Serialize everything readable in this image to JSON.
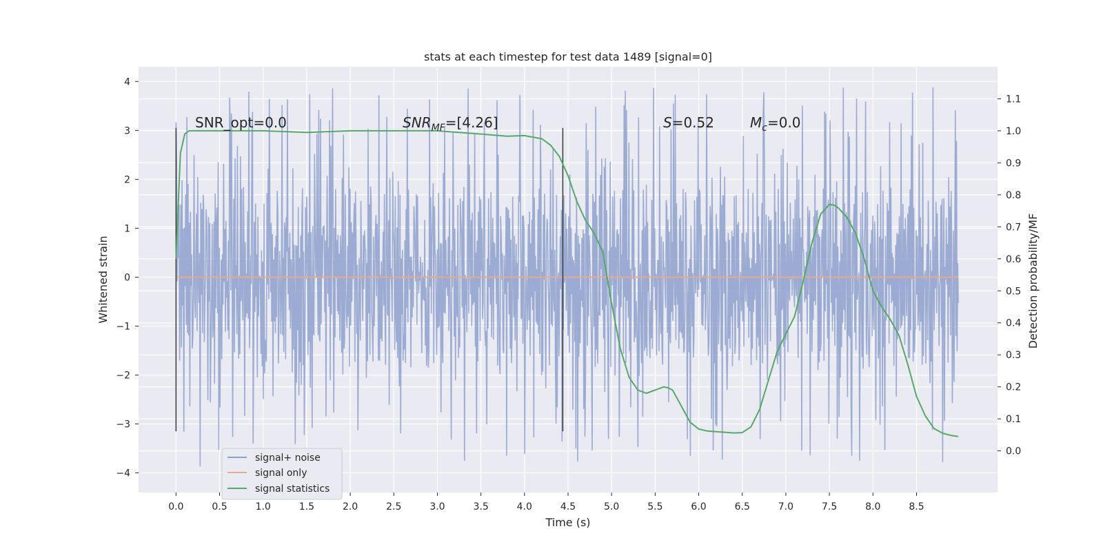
{
  "chart_data": {
    "type": "line",
    "title": "stats at each timestep for test data 1489 [signal=0]",
    "xlabel": "Time (s)",
    "ylabel": "Whitened strain",
    "y2label": "Detection probability/MF",
    "xlim": [
      -0.43,
      9.43
    ],
    "ylim": [
      -4.4,
      4.3
    ],
    "y2lim": [
      -0.13,
      1.2
    ],
    "grid": true,
    "legend_position": "lower-left",
    "x_ticks": [
      0.0,
      0.5,
      1.0,
      1.5,
      2.0,
      2.5,
      3.0,
      3.5,
      4.0,
      4.5,
      5.0,
      5.5,
      6.0,
      6.5,
      7.0,
      7.5,
      8.0,
      8.5
    ],
    "x_tick_labels": [
      "0.0",
      "0.5",
      "1.0",
      "1.5",
      "2.0",
      "2.5",
      "3.0",
      "3.5",
      "4.0",
      "4.5",
      "5.0",
      "5.5",
      "6.0",
      "6.5",
      "7.0",
      "7.5",
      "8.0",
      "8.5"
    ],
    "y_ticks": [
      4,
      3,
      2,
      1,
      0,
      -1,
      -2,
      -3,
      -4
    ],
    "y_tick_labels": [
      "4",
      "3",
      "2",
      "1",
      "0",
      "−1",
      "−2",
      "−3",
      "−4"
    ],
    "y2_ticks": [
      1.1,
      1.0,
      0.9,
      0.8,
      0.7,
      0.6,
      0.5,
      0.4,
      0.3,
      0.2,
      0.1,
      0.0
    ],
    "y2_tick_labels": [
      "1.1",
      "1.0",
      "0.9",
      "0.8",
      "0.7",
      "0.6",
      "0.5",
      "0.4",
      "0.3",
      "0.2",
      "0.1",
      "0.0"
    ],
    "annotations": {
      "snr_opt": "SNR_opt=0.0",
      "snr_mf_main": "SNR",
      "snr_mf_sub": "MF",
      "snr_mf_value": "=[4.26]",
      "s_main": "S",
      "s_value": "=0.52",
      "mc_main": "M",
      "mc_sub": "c",
      "mc_value": "=0.0"
    },
    "vertical_markers": {
      "x": [
        0.0,
        4.44
      ],
      "ymin": -3.15,
      "ymax": 3.05
    },
    "series": [
      {
        "name": "signal+ noise",
        "color": "#8da0cb",
        "style": "noise",
        "t_start": 0.0,
        "t_end": 8.98,
        "envelope": 1.85,
        "max_abs": 3.9
      },
      {
        "name": "signal only",
        "color": "#e8a98e",
        "style": "flat",
        "t_start": 0.0,
        "t_end": 8.98,
        "value": 0.0
      },
      {
        "name": "signal statistics",
        "color": "#55a868",
        "style": "line",
        "axis": "right",
        "x": [
          0.0,
          0.05,
          0.1,
          0.15,
          0.2,
          0.3,
          0.5,
          1.0,
          1.5,
          2.0,
          2.5,
          3.0,
          3.5,
          3.8,
          4.0,
          4.2,
          4.3,
          4.4,
          4.5,
          4.6,
          4.7,
          4.8,
          4.9,
          5.0,
          5.1,
          5.2,
          5.3,
          5.4,
          5.5,
          5.6,
          5.65,
          5.7,
          5.8,
          5.9,
          6.0,
          6.1,
          6.2,
          6.3,
          6.4,
          6.5,
          6.6,
          6.7,
          6.8,
          6.9,
          7.0,
          7.1,
          7.2,
          7.3,
          7.4,
          7.5,
          7.55,
          7.6,
          7.7,
          7.8,
          7.9,
          8.0,
          8.1,
          8.2,
          8.3,
          8.4,
          8.5,
          8.6,
          8.7,
          8.8,
          8.9,
          8.98
        ],
        "y": [
          0.6,
          0.93,
          0.99,
          1.0,
          1.0,
          1.0,
          1.0,
          1.0,
          0.995,
          1.0,
          1.0,
          1.0,
          0.99,
          0.983,
          0.985,
          0.975,
          0.955,
          0.92,
          0.86,
          0.78,
          0.72,
          0.68,
          0.62,
          0.46,
          0.32,
          0.23,
          0.19,
          0.18,
          0.19,
          0.2,
          0.197,
          0.19,
          0.14,
          0.09,
          0.068,
          0.062,
          0.06,
          0.058,
          0.056,
          0.057,
          0.075,
          0.13,
          0.22,
          0.31,
          0.365,
          0.42,
          0.53,
          0.65,
          0.74,
          0.77,
          0.768,
          0.76,
          0.73,
          0.68,
          0.6,
          0.5,
          0.45,
          0.41,
          0.36,
          0.27,
          0.17,
          0.11,
          0.07,
          0.055,
          0.048,
          0.045
        ]
      }
    ]
  }
}
